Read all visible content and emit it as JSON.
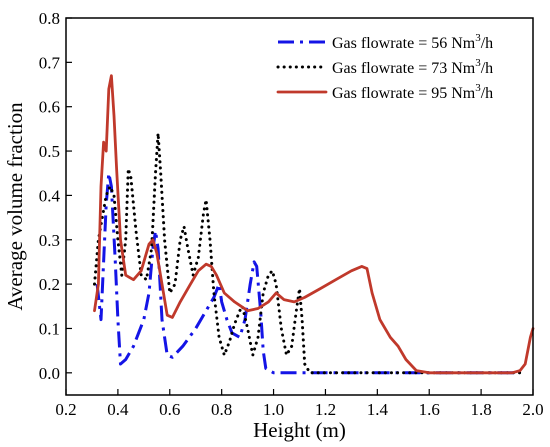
{
  "chart_data": {
    "type": "line",
    "xlabel": "Height (m)",
    "ylabel": "Average volume fraction",
    "xlim": [
      0.2,
      2.0
    ],
    "ylim": [
      -0.05,
      0.8
    ],
    "xticks": [
      0.2,
      0.4,
      0.6,
      0.8,
      1.0,
      1.2,
      1.4,
      1.6,
      1.8,
      2.0
    ],
    "xtick_labels": [
      "0.2",
      "0.4",
      "0.6",
      "0.8",
      "1.0",
      "1.2",
      "1.4",
      "1.6",
      "1.8",
      "2.0"
    ],
    "yticks": [
      0.0,
      0.1,
      0.2,
      0.3,
      0.4,
      0.5,
      0.6,
      0.7,
      0.8
    ],
    "ytick_labels": [
      "0.0",
      "0.1",
      "0.2",
      "0.3",
      "0.4",
      "0.5",
      "0.6",
      "0.7",
      "0.8"
    ],
    "grid": false,
    "legend_position": "top-right",
    "series": [
      {
        "name_prefix": "Gas flowrate = 56 Nm",
        "name_sup": "3",
        "name_suffix": "/h",
        "color": "#1414e6",
        "style": "dash-dot",
        "points": [
          [
            0.32,
            0.2
          ],
          [
            0.335,
            0.12
          ],
          [
            0.345,
            0.25
          ],
          [
            0.355,
            0.38
          ],
          [
            0.365,
            0.45
          ],
          [
            0.375,
            0.42
          ],
          [
            0.39,
            0.25
          ],
          [
            0.4,
            0.12
          ],
          [
            0.41,
            0.02
          ],
          [
            0.43,
            0.03
          ],
          [
            0.46,
            0.06
          ],
          [
            0.5,
            0.12
          ],
          [
            0.52,
            0.18
          ],
          [
            0.535,
            0.28
          ],
          [
            0.545,
            0.32
          ],
          [
            0.555,
            0.28
          ],
          [
            0.57,
            0.12
          ],
          [
            0.59,
            0.04
          ],
          [
            0.61,
            0.035
          ],
          [
            0.65,
            0.06
          ],
          [
            0.7,
            0.1
          ],
          [
            0.74,
            0.14
          ],
          [
            0.77,
            0.17
          ],
          [
            0.79,
            0.2
          ],
          [
            0.8,
            0.16
          ],
          [
            0.82,
            0.12
          ],
          [
            0.84,
            0.09
          ],
          [
            0.87,
            0.08
          ],
          [
            0.89,
            0.12
          ],
          [
            0.91,
            0.2
          ],
          [
            0.925,
            0.25
          ],
          [
            0.935,
            0.24
          ],
          [
            0.95,
            0.14
          ],
          [
            0.96,
            0.05
          ],
          [
            0.97,
            0.01
          ],
          [
            1.0,
            0.0
          ],
          [
            1.5,
            0.0
          ],
          [
            1.6,
            0.0
          ],
          [
            1.8,
            0.0
          ],
          [
            1.95,
            0.0
          ]
        ]
      },
      {
        "name_prefix": "Gas flowrate = 73 Nm",
        "name_sup": "3",
        "name_suffix": "/h",
        "color": "#000000",
        "style": "dotted",
        "points": [
          [
            0.31,
            0.2
          ],
          [
            0.325,
            0.3
          ],
          [
            0.34,
            0.35
          ],
          [
            0.355,
            0.4
          ],
          [
            0.37,
            0.42
          ],
          [
            0.385,
            0.4
          ],
          [
            0.4,
            0.3
          ],
          [
            0.415,
            0.22
          ],
          [
            0.43,
            0.3
          ],
          [
            0.44,
            0.46
          ],
          [
            0.45,
            0.44
          ],
          [
            0.47,
            0.32
          ],
          [
            0.49,
            0.22
          ],
          [
            0.51,
            0.21
          ],
          [
            0.53,
            0.28
          ],
          [
            0.545,
            0.45
          ],
          [
            0.555,
            0.54
          ],
          [
            0.565,
            0.45
          ],
          [
            0.58,
            0.3
          ],
          [
            0.6,
            0.18
          ],
          [
            0.62,
            0.2
          ],
          [
            0.64,
            0.3
          ],
          [
            0.655,
            0.33
          ],
          [
            0.67,
            0.28
          ],
          [
            0.69,
            0.22
          ],
          [
            0.71,
            0.26
          ],
          [
            0.73,
            0.36
          ],
          [
            0.74,
            0.39
          ],
          [
            0.755,
            0.3
          ],
          [
            0.77,
            0.18
          ],
          [
            0.79,
            0.08
          ],
          [
            0.81,
            0.04
          ],
          [
            0.83,
            0.07
          ],
          [
            0.85,
            0.11
          ],
          [
            0.87,
            0.14
          ],
          [
            0.88,
            0.15
          ],
          [
            0.9,
            0.1
          ],
          [
            0.92,
            0.04
          ],
          [
            0.94,
            0.08
          ],
          [
            0.96,
            0.18
          ],
          [
            0.98,
            0.22
          ],
          [
            0.995,
            0.23
          ],
          [
            1.01,
            0.2
          ],
          [
            1.03,
            0.1
          ],
          [
            1.05,
            0.04
          ],
          [
            1.07,
            0.06
          ],
          [
            1.09,
            0.15
          ],
          [
            1.1,
            0.19
          ],
          [
            1.11,
            0.12
          ],
          [
            1.12,
            0.02
          ],
          [
            1.14,
            0.0
          ],
          [
            1.3,
            0.0
          ],
          [
            1.6,
            0.0
          ],
          [
            1.95,
            0.0
          ]
        ]
      },
      {
        "name_prefix": "Gas flowrate = 95 Nm",
        "name_sup": "3",
        "name_suffix": "/h",
        "color": "#c0392b",
        "style": "solid",
        "points": [
          [
            0.31,
            0.14
          ],
          [
            0.325,
            0.2
          ],
          [
            0.335,
            0.42
          ],
          [
            0.345,
            0.52
          ],
          [
            0.355,
            0.5
          ],
          [
            0.365,
            0.64
          ],
          [
            0.375,
            0.67
          ],
          [
            0.385,
            0.58
          ],
          [
            0.395,
            0.46
          ],
          [
            0.41,
            0.3
          ],
          [
            0.43,
            0.22
          ],
          [
            0.46,
            0.21
          ],
          [
            0.49,
            0.23
          ],
          [
            0.52,
            0.29
          ],
          [
            0.535,
            0.3
          ],
          [
            0.55,
            0.27
          ],
          [
            0.57,
            0.2
          ],
          [
            0.59,
            0.13
          ],
          [
            0.61,
            0.125
          ],
          [
            0.64,
            0.16
          ],
          [
            0.68,
            0.2
          ],
          [
            0.71,
            0.23
          ],
          [
            0.74,
            0.245
          ],
          [
            0.76,
            0.24
          ],
          [
            0.78,
            0.22
          ],
          [
            0.81,
            0.18
          ],
          [
            0.85,
            0.16
          ],
          [
            0.9,
            0.14
          ],
          [
            0.94,
            0.145
          ],
          [
            0.98,
            0.16
          ],
          [
            1.01,
            0.18
          ],
          [
            1.04,
            0.165
          ],
          [
            1.08,
            0.16
          ],
          [
            1.12,
            0.17
          ],
          [
            1.18,
            0.19
          ],
          [
            1.24,
            0.21
          ],
          [
            1.3,
            0.23
          ],
          [
            1.34,
            0.24
          ],
          [
            1.36,
            0.235
          ],
          [
            1.38,
            0.18
          ],
          [
            1.41,
            0.12
          ],
          [
            1.45,
            0.08
          ],
          [
            1.48,
            0.06
          ],
          [
            1.51,
            0.03
          ],
          [
            1.55,
            0.005
          ],
          [
            1.6,
            0.0
          ],
          [
            1.8,
            0.0
          ],
          [
            1.92,
            0.0
          ],
          [
            1.95,
            0.005
          ],
          [
            1.97,
            0.02
          ],
          [
            1.99,
            0.08
          ],
          [
            2.0,
            0.1
          ]
        ]
      }
    ]
  }
}
